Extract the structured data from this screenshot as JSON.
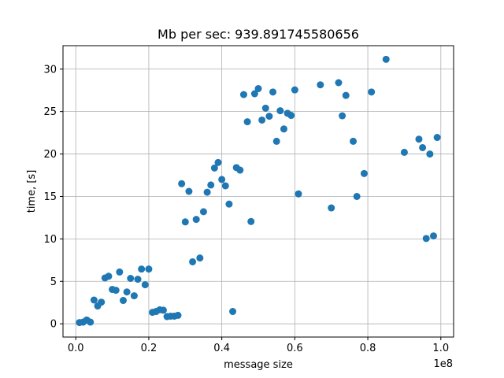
{
  "chart_data": {
    "type": "scatter",
    "title": "Mb per sec: 939.891745580656",
    "xlabel": "message size",
    "ylabel": "time, [s]",
    "x_offset_label": "1e8",
    "xlim": [
      -0.035,
      1.035
    ],
    "ylim": [
      -1.56,
      32.76
    ],
    "x_ticks": [
      0.0,
      0.2,
      0.4,
      0.6,
      0.8,
      1.0
    ],
    "x_tick_labels": [
      "0.0",
      "0.2",
      "0.4",
      "0.6",
      "0.8",
      "1.0"
    ],
    "y_ticks": [
      0,
      5,
      10,
      15,
      20,
      25,
      30
    ],
    "y_tick_labels": [
      "0",
      "5",
      "10",
      "15",
      "20",
      "25",
      "30"
    ],
    "grid": true,
    "marker_color": "#1f77b4",
    "points": [
      [
        0.01,
        0.15
      ],
      [
        0.02,
        0.2
      ],
      [
        0.03,
        0.45
      ],
      [
        0.04,
        0.2
      ],
      [
        0.05,
        2.8
      ],
      [
        0.06,
        2.1
      ],
      [
        0.07,
        2.55
      ],
      [
        0.08,
        5.4
      ],
      [
        0.09,
        5.6
      ],
      [
        0.1,
        4.05
      ],
      [
        0.11,
        3.95
      ],
      [
        0.12,
        6.1
      ],
      [
        0.13,
        2.75
      ],
      [
        0.14,
        3.75
      ],
      [
        0.15,
        5.35
      ],
      [
        0.16,
        3.3
      ],
      [
        0.17,
        5.25
      ],
      [
        0.18,
        6.45
      ],
      [
        0.19,
        4.6
      ],
      [
        0.2,
        6.45
      ],
      [
        0.21,
        1.35
      ],
      [
        0.22,
        1.45
      ],
      [
        0.23,
        1.65
      ],
      [
        0.24,
        1.6
      ],
      [
        0.25,
        0.85
      ],
      [
        0.26,
        0.9
      ],
      [
        0.27,
        0.9
      ],
      [
        0.28,
        1.0
      ],
      [
        0.29,
        16.5
      ],
      [
        0.3,
        12.0
      ],
      [
        0.31,
        15.6
      ],
      [
        0.32,
        7.3
      ],
      [
        0.33,
        12.3
      ],
      [
        0.34,
        7.75
      ],
      [
        0.35,
        13.2
      ],
      [
        0.36,
        15.5
      ],
      [
        0.37,
        16.35
      ],
      [
        0.38,
        18.35
      ],
      [
        0.39,
        19.0
      ],
      [
        0.4,
        17.0
      ],
      [
        0.41,
        16.25
      ],
      [
        0.42,
        14.1
      ],
      [
        0.43,
        1.45
      ],
      [
        0.44,
        18.4
      ],
      [
        0.45,
        18.1
      ],
      [
        0.46,
        27.0
      ],
      [
        0.47,
        23.8
      ],
      [
        0.48,
        12.05
      ],
      [
        0.49,
        27.1
      ],
      [
        0.5,
        27.7
      ],
      [
        0.51,
        24.0
      ],
      [
        0.52,
        25.4
      ],
      [
        0.53,
        24.45
      ],
      [
        0.54,
        27.3
      ],
      [
        0.55,
        21.5
      ],
      [
        0.56,
        25.1
      ],
      [
        0.57,
        22.95
      ],
      [
        0.58,
        24.8
      ],
      [
        0.59,
        24.55
      ],
      [
        0.6,
        27.55
      ],
      [
        0.61,
        15.3
      ],
      [
        0.67,
        28.15
      ],
      [
        0.7,
        13.65
      ],
      [
        0.72,
        28.4
      ],
      [
        0.73,
        24.5
      ],
      [
        0.74,
        26.9
      ],
      [
        0.76,
        21.5
      ],
      [
        0.77,
        15.0
      ],
      [
        0.79,
        17.7
      ],
      [
        0.81,
        27.3
      ],
      [
        0.85,
        31.15
      ],
      [
        0.9,
        20.2
      ],
      [
        0.94,
        21.75
      ],
      [
        0.95,
        20.75
      ],
      [
        0.96,
        10.05
      ],
      [
        0.97,
        20.0
      ],
      [
        0.98,
        10.35
      ],
      [
        0.99,
        21.95
      ]
    ]
  }
}
